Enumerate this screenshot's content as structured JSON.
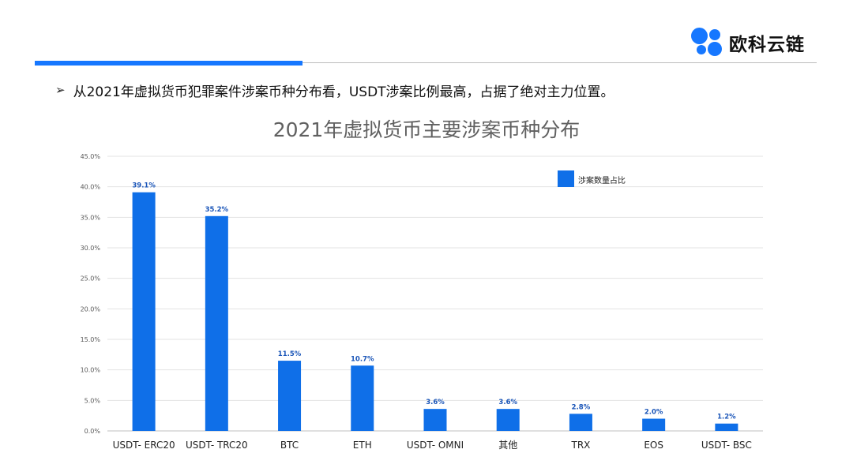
{
  "brand": {
    "name": "欧科云链",
    "color": "#1677ff"
  },
  "header": {
    "bullet_icon": "arrow-bullet-icon",
    "bullet_glyph": "➢",
    "bullet_text": "从2021年虚拟货币犯罪案件涉案币种分布看，USDT涉案比例最高，占据了绝对主力位置。"
  },
  "chart_data": {
    "type": "bar",
    "title": "2021年虚拟货币主要涉案币种分布",
    "categories": [
      "USDT- ERC20",
      "USDT- TRC20",
      "BTC",
      "ETH",
      "USDT- OMNI",
      "其他",
      "TRX",
      "EOS",
      "USDT- BSC"
    ],
    "series": [
      {
        "name": "涉案数量占比",
        "values": [
          39.1,
          35.2,
          11.5,
          10.7,
          3.6,
          3.6,
          2.8,
          2.0,
          1.2
        ],
        "labels": [
          "39.1%",
          "35.2%",
          "11.5%",
          "10.7%",
          "3.6%",
          "3.6%",
          "2.8%",
          "2.0%",
          "1.2%"
        ]
      }
    ],
    "y_ticks": [
      0,
      5,
      10,
      15,
      20,
      25,
      30,
      35,
      40,
      45
    ],
    "y_tick_labels": [
      "0.0%",
      "5.0%",
      "10.0%",
      "15.0%",
      "20.0%",
      "25.0%",
      "30.0%",
      "35.0%",
      "40.0%",
      "45.0%"
    ],
    "ylim": [
      0,
      45
    ],
    "grid": true,
    "legend_position": "top-right",
    "bar_color": "#0f6fe8"
  }
}
